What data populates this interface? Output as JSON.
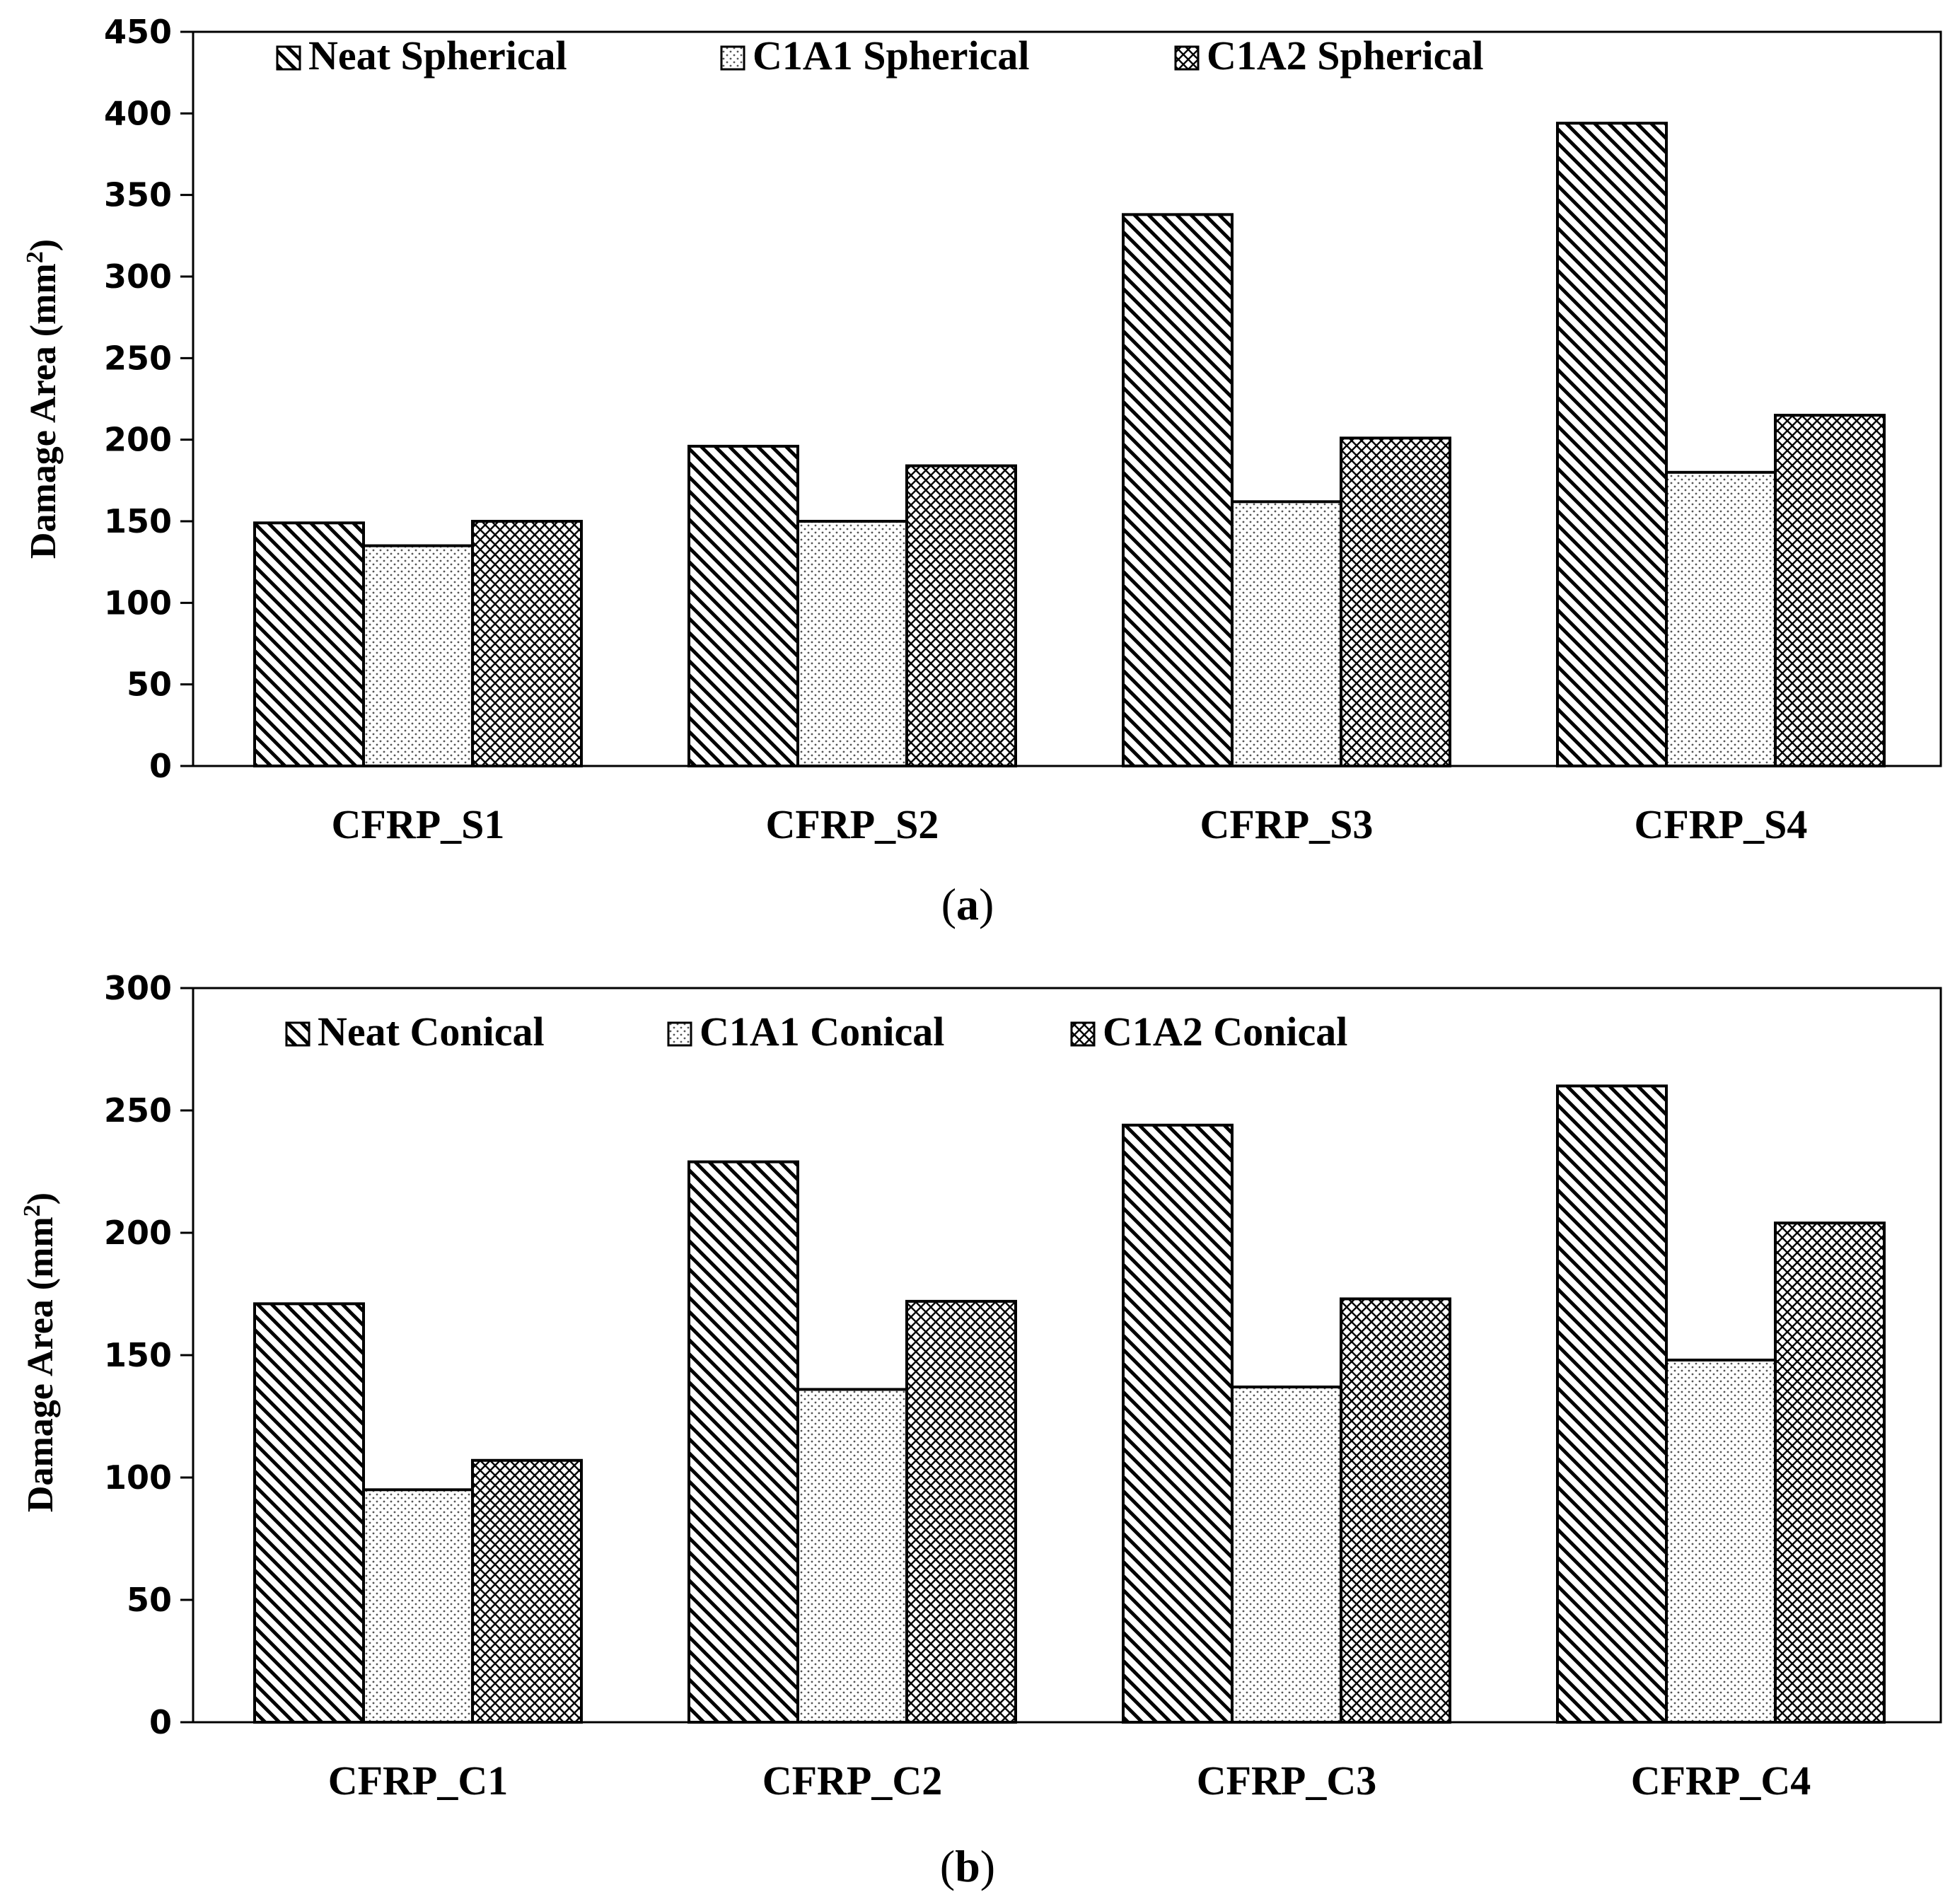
{
  "chart_data": [
    {
      "type": "bar",
      "panel_label": "a",
      "title": "",
      "xlabel": "",
      "ylabel": "Damage Area (mm",
      "ylabel_sup": "2",
      "ylabel_close": ")",
      "ylim": [
        0,
        450
      ],
      "yticks": [
        0,
        50,
        100,
        150,
        200,
        250,
        300,
        350,
        400,
        450
      ],
      "categories": [
        "CFRP_S1",
        "CFRP_S2",
        "CFRP_S3",
        "CFRP_S4"
      ],
      "legend_position": "top",
      "series": [
        {
          "name": "Neat Spherical",
          "pattern": "diagonal-hatch",
          "values": [
            149,
            196,
            338,
            394
          ]
        },
        {
          "name": "C1A1 Spherical",
          "pattern": "dots",
          "values": [
            135,
            150,
            162,
            180
          ]
        },
        {
          "name": "C1A2 Spherical",
          "pattern": "cross-hatch",
          "values": [
            150,
            184,
            201,
            215
          ]
        }
      ]
    },
    {
      "type": "bar",
      "panel_label": "b",
      "title": "",
      "xlabel": "",
      "ylabel": "Damage Area (mm",
      "ylabel_sup": "2",
      "ylabel_close": ")",
      "ylim": [
        0,
        300
      ],
      "yticks": [
        0,
        50,
        100,
        150,
        200,
        250,
        300
      ],
      "categories": [
        "CFRP_C1",
        "CFRP_C2",
        "CFRP_C3",
        "CFRP_C4"
      ],
      "legend_position": "top",
      "series": [
        {
          "name": "Neat Conical",
          "pattern": "diagonal-hatch",
          "values": [
            171,
            229,
            244,
            260
          ]
        },
        {
          "name": "C1A1 Conical",
          "pattern": "dots",
          "values": [
            95,
            136,
            137,
            148
          ]
        },
        {
          "name": "C1A2 Conical",
          "pattern": "cross-hatch",
          "values": [
            107,
            172,
            173,
            204
          ]
        }
      ]
    }
  ],
  "colors": {
    "bar_stroke": "#000000",
    "pattern_ink": "#000000",
    "background": "#ffffff"
  }
}
